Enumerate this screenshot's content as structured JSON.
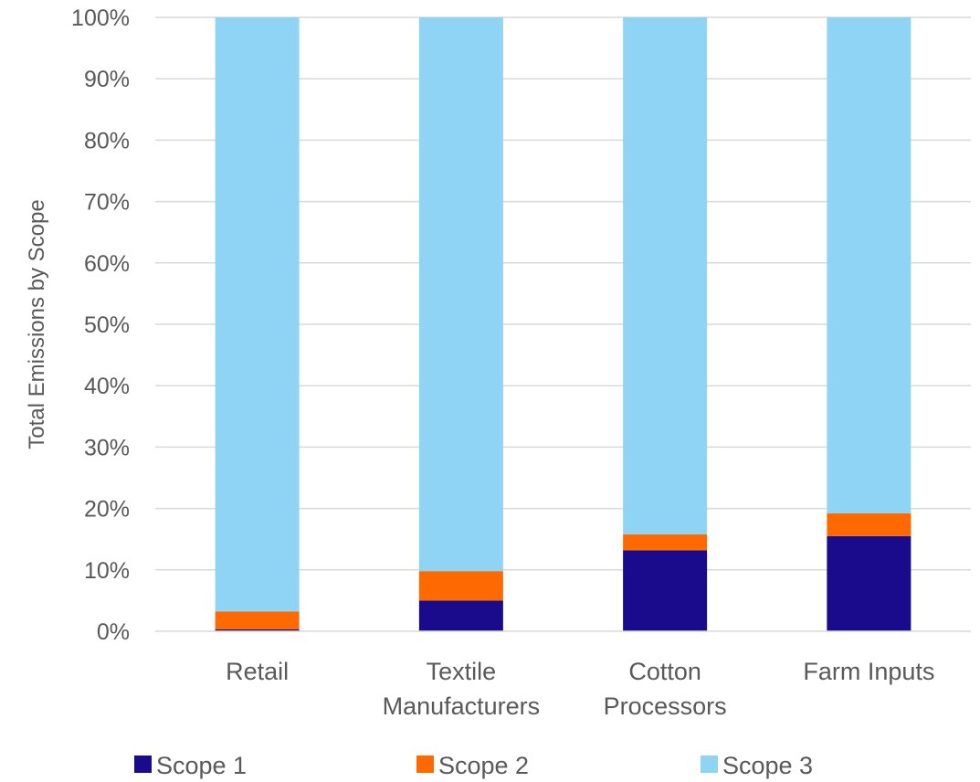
{
  "chart_data": {
    "type": "bar",
    "stacked": true,
    "categories": [
      [
        "Retail"
      ],
      [
        "Textile",
        "Manufacturers"
      ],
      [
        "Cotton",
        "Processors"
      ],
      [
        "Farm Inputs"
      ]
    ],
    "series": [
      {
        "name": "Scope 1",
        "color": "#1a0a8c",
        "values": [
          0.3,
          5.0,
          13.2,
          15.5
        ]
      },
      {
        "name": "Scope 2",
        "color": "#ff6a00",
        "values": [
          2.9,
          4.8,
          2.6,
          3.7
        ]
      },
      {
        "name": "Scope 3",
        "color": "#8fd4f5",
        "values": [
          96.8,
          90.2,
          84.2,
          80.8
        ]
      }
    ],
    "ylabel": "Total Emissions by Scope",
    "ylim": [
      0,
      100
    ],
    "yticks": [
      0,
      10,
      20,
      30,
      40,
      50,
      60,
      70,
      80,
      90,
      100
    ],
    "ytick_labels": [
      "0%",
      "10%",
      "20%",
      "30%",
      "40%",
      "50%",
      "60%",
      "70%",
      "80%",
      "90%",
      "100%"
    ],
    "gridlines": true,
    "legend_position": "bottom"
  }
}
